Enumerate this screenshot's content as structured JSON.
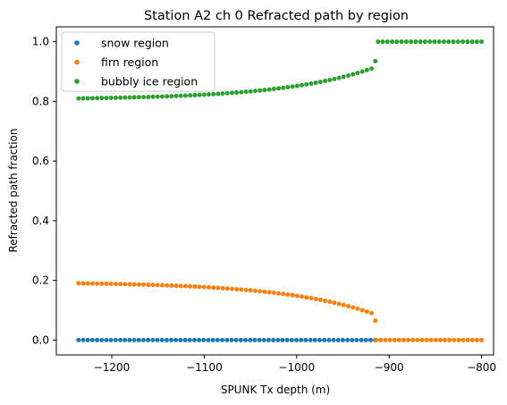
{
  "chart_data": {
    "type": "scatter",
    "title": "Station A2 ch 0 Refracted path by region",
    "xlabel": "SPUNK Tx depth (m)",
    "ylabel": "Refracted path fraction",
    "xlim": [
      -1260,
      -787
    ],
    "ylim": [
      -0.05,
      1.05
    ],
    "xticks": [
      -1200,
      -1100,
      -1000,
      -900,
      -800
    ],
    "xtick_labels": [
      "−1200",
      "−1100",
      "−1000",
      "−900",
      "−800"
    ],
    "yticks": [
      0.0,
      0.2,
      0.4,
      0.6,
      0.8,
      1.0
    ],
    "ytick_labels": [
      "0.0",
      "0.2",
      "0.4",
      "0.6",
      "0.8",
      "1.0"
    ],
    "grid": false,
    "legend_position": "top-left",
    "series": [
      {
        "name": "snow region",
        "color": "#1f77b4",
        "points": [
          {
            "x_range": [
              -1236,
              -915
            ],
            "step": 5,
            "y": 0.0
          }
        ]
      },
      {
        "name": "firn region",
        "color": "#ff7f0e",
        "points": [
          {
            "x_range": [
              -1236,
              -919
            ],
            "step": 5,
            "y_profile": "rising-to-cutoff",
            "y_start": 0.19,
            "y_end": 0.09
          },
          {
            "x": -915,
            "y": 0.065
          },
          {
            "x_range": [
              -914,
              -800
            ],
            "step": 5,
            "y": 0.0
          }
        ]
      },
      {
        "name": "bubbly ice region",
        "color": "#2ca02c",
        "points": [
          {
            "x_range": [
              -1236,
              -919
            ],
            "step": 5,
            "y_profile": "rising-to-cutoff",
            "y_start": 0.81,
            "y_end": 0.91
          },
          {
            "x": -915,
            "y": 0.935
          },
          {
            "x_range": [
              -912,
              -800
            ],
            "step": 5,
            "y": 1.0
          }
        ]
      }
    ]
  },
  "legend": {
    "items": [
      {
        "label": "snow region",
        "color": "#1f77b4"
      },
      {
        "label": "firn region",
        "color": "#ff7f0e"
      },
      {
        "label": "bubbly ice region",
        "color": "#2ca02c"
      }
    ]
  }
}
